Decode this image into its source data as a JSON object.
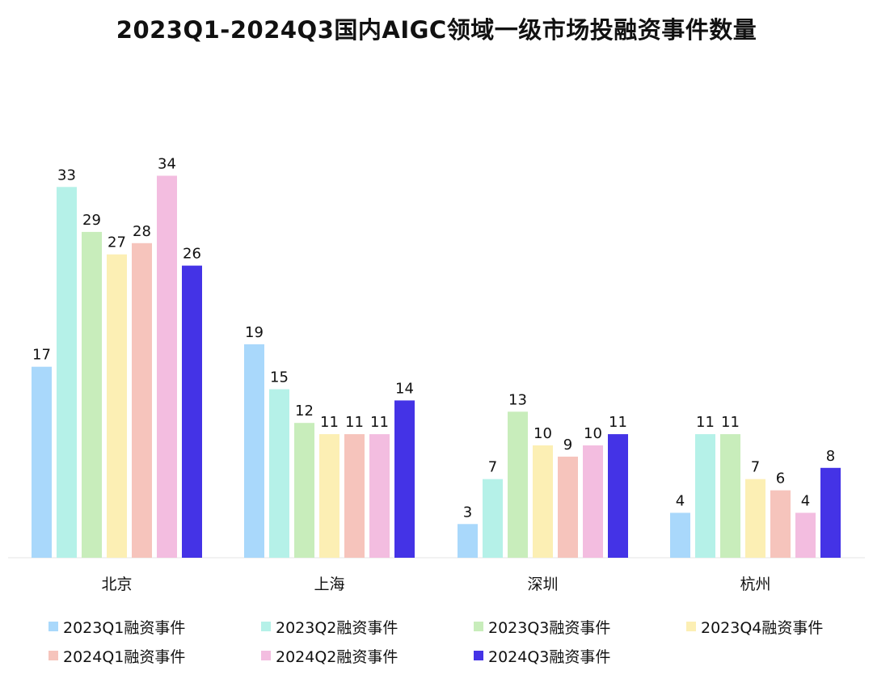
{
  "chart_data": {
    "type": "bar",
    "title": "2023Q1-2024Q3国内AIGC领域一级市场投融资事件数量",
    "xlabel": "",
    "ylabel": "",
    "ylim": [
      0,
      34
    ],
    "grid": false,
    "legend_position": "bottom",
    "categories": [
      "北京",
      "上海",
      "深圳",
      "杭州"
    ],
    "series": [
      {
        "name": "2023Q1融资事件",
        "color": "#a9d8fb",
        "values": [
          17,
          19,
          3,
          4
        ]
      },
      {
        "name": "2023Q2融资事件",
        "color": "#b5f1e8",
        "values": [
          33,
          15,
          7,
          11
        ]
      },
      {
        "name": "2023Q3融资事件",
        "color": "#c8edbb",
        "values": [
          29,
          12,
          13,
          11
        ]
      },
      {
        "name": "2023Q4融资事件",
        "color": "#fcefb4",
        "values": [
          27,
          11,
          10,
          7
        ]
      },
      {
        "name": "2024Q1融资事件",
        "color": "#f6c4bc",
        "values": [
          28,
          11,
          9,
          6
        ]
      },
      {
        "name": "2024Q2融资事件",
        "color": "#f3bde0",
        "values": [
          34,
          11,
          10,
          4
        ]
      },
      {
        "name": "2024Q3融资事件",
        "color": "#4433e6",
        "values": [
          26,
          14,
          11,
          8
        ]
      }
    ]
  }
}
